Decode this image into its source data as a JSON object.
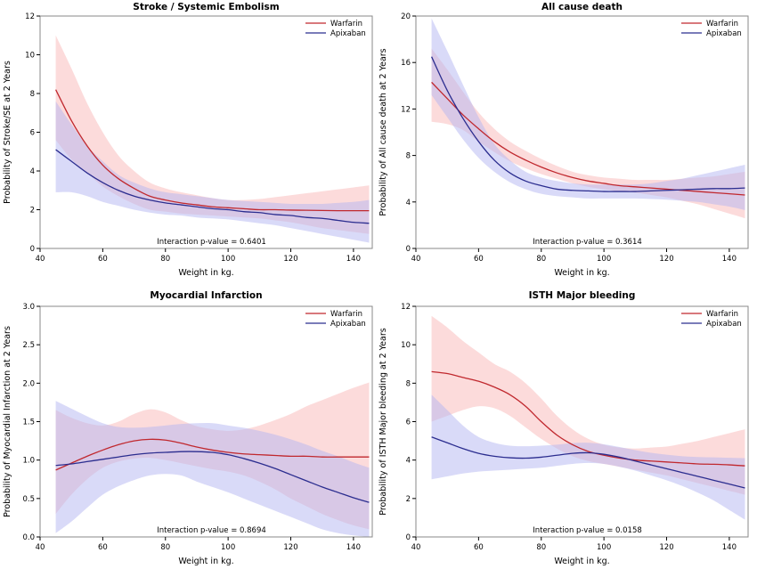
{
  "colors": {
    "warfarin_line": "#c0282e",
    "warfarin_band": "#f9b7b7",
    "apixaban_line": "#2b2d8f",
    "apixaban_band": "#b3b5f2"
  },
  "chart_data": [
    {
      "type": "line",
      "title": "Stroke / Systemic Embolism",
      "xlabel": "Weight in kg.",
      "ylabel": "Probability of Stroke/SE at 2 Years",
      "xlim": [
        40,
        146
      ],
      "ylim": [
        0,
        12
      ],
      "xticks": [
        40,
        60,
        80,
        100,
        120,
        140
      ],
      "yticks": [
        0,
        2,
        4,
        6,
        8,
        10,
        12
      ],
      "legend_position": "top-right",
      "annotation": "Interaction p-value = 0.6401",
      "x": [
        45,
        50,
        55,
        60,
        65,
        70,
        75,
        80,
        85,
        90,
        95,
        100,
        105,
        110,
        115,
        120,
        125,
        130,
        135,
        140,
        145
      ],
      "series": [
        {
          "name": "Warfarin",
          "values": [
            8.2,
            6.6,
            5.3,
            4.3,
            3.6,
            3.1,
            2.7,
            2.5,
            2.35,
            2.25,
            2.15,
            2.1,
            2.05,
            2.0,
            2.0,
            1.98,
            1.97,
            1.96,
            1.95,
            1.95,
            1.95
          ],
          "lower": [
            5.6,
            4.6,
            3.9,
            3.2,
            2.7,
            2.3,
            2.0,
            1.9,
            1.8,
            1.75,
            1.7,
            1.65,
            1.6,
            1.55,
            1.45,
            1.35,
            1.2,
            1.05,
            0.95,
            0.85,
            0.75
          ],
          "upper": [
            11.0,
            9.3,
            7.5,
            6.0,
            4.8,
            4.0,
            3.4,
            3.1,
            2.9,
            2.75,
            2.6,
            2.5,
            2.5,
            2.55,
            2.65,
            2.75,
            2.85,
            2.95,
            3.05,
            3.15,
            3.25
          ]
        },
        {
          "name": "Apixaban",
          "values": [
            5.1,
            4.5,
            3.9,
            3.4,
            3.0,
            2.7,
            2.5,
            2.35,
            2.25,
            2.15,
            2.05,
            2.0,
            1.9,
            1.85,
            1.75,
            1.7,
            1.6,
            1.55,
            1.45,
            1.35,
            1.3
          ],
          "lower": [
            2.9,
            2.9,
            2.7,
            2.4,
            2.2,
            2.0,
            1.85,
            1.75,
            1.7,
            1.6,
            1.55,
            1.5,
            1.4,
            1.3,
            1.2,
            1.05,
            0.9,
            0.75,
            0.6,
            0.45,
            0.3
          ],
          "upper": [
            7.6,
            6.4,
            5.3,
            4.5,
            3.8,
            3.4,
            3.1,
            2.9,
            2.8,
            2.7,
            2.6,
            2.5,
            2.45,
            2.4,
            2.35,
            2.3,
            2.3,
            2.3,
            2.35,
            2.4,
            2.5
          ]
        }
      ]
    },
    {
      "type": "line",
      "title": "All cause death",
      "xlabel": "Weight in kg.",
      "ylabel": "Probability of All cause death at 2 Years",
      "xlim": [
        40,
        146
      ],
      "ylim": [
        0,
        20
      ],
      "xticks": [
        40,
        60,
        80,
        100,
        120,
        140
      ],
      "yticks": [
        0,
        4,
        8,
        12,
        16,
        20
      ],
      "legend_position": "top-right",
      "annotation": "Interaction p-value = 0.3614",
      "x": [
        45,
        50,
        55,
        60,
        65,
        70,
        75,
        80,
        85,
        90,
        95,
        100,
        105,
        110,
        115,
        120,
        125,
        130,
        135,
        140,
        145
      ],
      "series": [
        {
          "name": "Warfarin",
          "values": [
            14.3,
            12.9,
            11.5,
            10.3,
            9.2,
            8.3,
            7.6,
            7.0,
            6.5,
            6.1,
            5.8,
            5.6,
            5.4,
            5.3,
            5.2,
            5.1,
            5.0,
            4.9,
            4.8,
            4.7,
            4.6
          ],
          "lower": [
            10.9,
            10.7,
            10.2,
            9.2,
            8.3,
            7.5,
            6.9,
            6.4,
            6.0,
            5.6,
            5.3,
            5.1,
            4.9,
            4.8,
            4.6,
            4.4,
            4.1,
            3.8,
            3.4,
            3.0,
            2.6
          ],
          "upper": [
            17.2,
            15.4,
            13.5,
            11.7,
            10.3,
            9.2,
            8.4,
            7.7,
            7.1,
            6.6,
            6.3,
            6.1,
            6.0,
            5.9,
            5.9,
            5.9,
            6.0,
            6.1,
            6.2,
            6.4,
            6.6
          ]
        },
        {
          "name": "Apixaban",
          "values": [
            16.5,
            13.6,
            11.2,
            9.2,
            7.6,
            6.5,
            5.8,
            5.4,
            5.1,
            5.0,
            4.95,
            4.9,
            4.9,
            4.9,
            4.95,
            5.0,
            5.05,
            5.1,
            5.15,
            5.15,
            5.2
          ],
          "lower": [
            13.2,
            11.3,
            9.4,
            7.8,
            6.6,
            5.7,
            5.1,
            4.7,
            4.5,
            4.4,
            4.3,
            4.3,
            4.3,
            4.3,
            4.25,
            4.2,
            4.1,
            4.0,
            3.8,
            3.6,
            3.3
          ],
          "upper": [
            19.8,
            17.0,
            14.1,
            11.3,
            9.0,
            7.6,
            6.6,
            6.1,
            5.8,
            5.6,
            5.5,
            5.5,
            5.5,
            5.5,
            5.6,
            5.8,
            6.0,
            6.3,
            6.6,
            6.9,
            7.2
          ]
        }
      ]
    },
    {
      "type": "line",
      "title": "Myocardial Infarction",
      "xlabel": "Weight in kg.",
      "ylabel": "Probability of Myocardial Infarction at 2 Years",
      "xlim": [
        40,
        146
      ],
      "ylim": [
        0,
        3.0
      ],
      "xticks": [
        40,
        60,
        80,
        100,
        120,
        140
      ],
      "yticks": [
        0.0,
        0.5,
        1.0,
        1.5,
        2.0,
        2.5,
        3.0
      ],
      "legend_position": "top-right",
      "annotation": "Interaction p-value = 0.8694",
      "x": [
        45,
        50,
        55,
        60,
        65,
        70,
        75,
        80,
        85,
        90,
        95,
        100,
        105,
        110,
        115,
        120,
        125,
        130,
        135,
        140,
        145
      ],
      "series": [
        {
          "name": "Warfarin",
          "values": [
            0.87,
            0.96,
            1.05,
            1.13,
            1.2,
            1.25,
            1.27,
            1.26,
            1.22,
            1.17,
            1.13,
            1.1,
            1.08,
            1.07,
            1.06,
            1.05,
            1.05,
            1.04,
            1.04,
            1.04,
            1.04
          ],
          "lower": [
            0.3,
            0.55,
            0.75,
            0.9,
            0.98,
            1.02,
            1.03,
            1.0,
            0.96,
            0.92,
            0.88,
            0.85,
            0.8,
            0.72,
            0.62,
            0.5,
            0.4,
            0.3,
            0.22,
            0.15,
            0.1
          ],
          "upper": [
            1.65,
            1.55,
            1.48,
            1.45,
            1.5,
            1.6,
            1.66,
            1.62,
            1.52,
            1.44,
            1.4,
            1.38,
            1.4,
            1.45,
            1.52,
            1.6,
            1.7,
            1.78,
            1.86,
            1.94,
            2.01
          ]
        },
        {
          "name": "Apixaban",
          "values": [
            0.93,
            0.95,
            0.98,
            1.01,
            1.04,
            1.07,
            1.09,
            1.1,
            1.11,
            1.11,
            1.1,
            1.07,
            1.02,
            0.96,
            0.89,
            0.81,
            0.73,
            0.65,
            0.58,
            0.51,
            0.45
          ],
          "lower": [
            0.05,
            0.2,
            0.38,
            0.55,
            0.66,
            0.74,
            0.8,
            0.82,
            0.8,
            0.72,
            0.65,
            0.58,
            0.5,
            0.42,
            0.34,
            0.26,
            0.18,
            0.1,
            0.05,
            0.02,
            0.0
          ],
          "upper": [
            1.77,
            1.67,
            1.57,
            1.48,
            1.43,
            1.42,
            1.43,
            1.45,
            1.47,
            1.48,
            1.48,
            1.45,
            1.42,
            1.38,
            1.33,
            1.27,
            1.2,
            1.12,
            1.05,
            0.97,
            0.9
          ]
        }
      ]
    },
    {
      "type": "line",
      "title": "ISTH Major bleeding",
      "xlabel": "Weight in kg.",
      "ylabel": "Probability of ISTH Major bleeding at 2 Years",
      "xlim": [
        40,
        146
      ],
      "ylim": [
        0,
        12
      ],
      "xticks": [
        40,
        60,
        80,
        100,
        120,
        140
      ],
      "yticks": [
        0,
        2,
        4,
        6,
        8,
        10,
        12
      ],
      "legend_position": "top-right",
      "annotation": "Interaction p-value = 0.0158",
      "x": [
        45,
        50,
        55,
        60,
        65,
        70,
        75,
        80,
        85,
        90,
        95,
        100,
        105,
        110,
        115,
        120,
        125,
        130,
        135,
        140,
        145
      ],
      "series": [
        {
          "name": "Warfarin",
          "values": [
            8.6,
            8.5,
            8.3,
            8.1,
            7.8,
            7.4,
            6.8,
            6.0,
            5.3,
            4.8,
            4.45,
            4.25,
            4.1,
            4.0,
            3.95,
            3.9,
            3.85,
            3.8,
            3.78,
            3.75,
            3.7
          ],
          "lower": [
            6.0,
            6.3,
            6.6,
            6.8,
            6.7,
            6.3,
            5.7,
            5.1,
            4.6,
            4.2,
            3.95,
            3.8,
            3.65,
            3.5,
            3.35,
            3.2,
            3.0,
            2.8,
            2.6,
            2.4,
            2.2
          ],
          "upper": [
            11.5,
            10.9,
            10.2,
            9.6,
            9.0,
            8.6,
            8.0,
            7.2,
            6.3,
            5.6,
            5.1,
            4.8,
            4.65,
            4.6,
            4.65,
            4.7,
            4.85,
            5.0,
            5.2,
            5.4,
            5.6
          ]
        },
        {
          "name": "Apixaban",
          "values": [
            5.2,
            4.9,
            4.6,
            4.35,
            4.2,
            4.12,
            4.1,
            4.15,
            4.25,
            4.35,
            4.38,
            4.3,
            4.15,
            3.95,
            3.75,
            3.55,
            3.35,
            3.15,
            2.95,
            2.75,
            2.55
          ],
          "lower": [
            3.0,
            3.15,
            3.3,
            3.4,
            3.45,
            3.5,
            3.55,
            3.6,
            3.7,
            3.8,
            3.85,
            3.8,
            3.65,
            3.45,
            3.2,
            2.95,
            2.65,
            2.3,
            1.9,
            1.4,
            0.9
          ],
          "upper": [
            7.4,
            6.6,
            5.8,
            5.2,
            4.9,
            4.75,
            4.72,
            4.75,
            4.8,
            4.88,
            4.9,
            4.82,
            4.68,
            4.52,
            4.38,
            4.28,
            4.2,
            4.16,
            4.14,
            4.12,
            4.1
          ]
        }
      ]
    }
  ]
}
